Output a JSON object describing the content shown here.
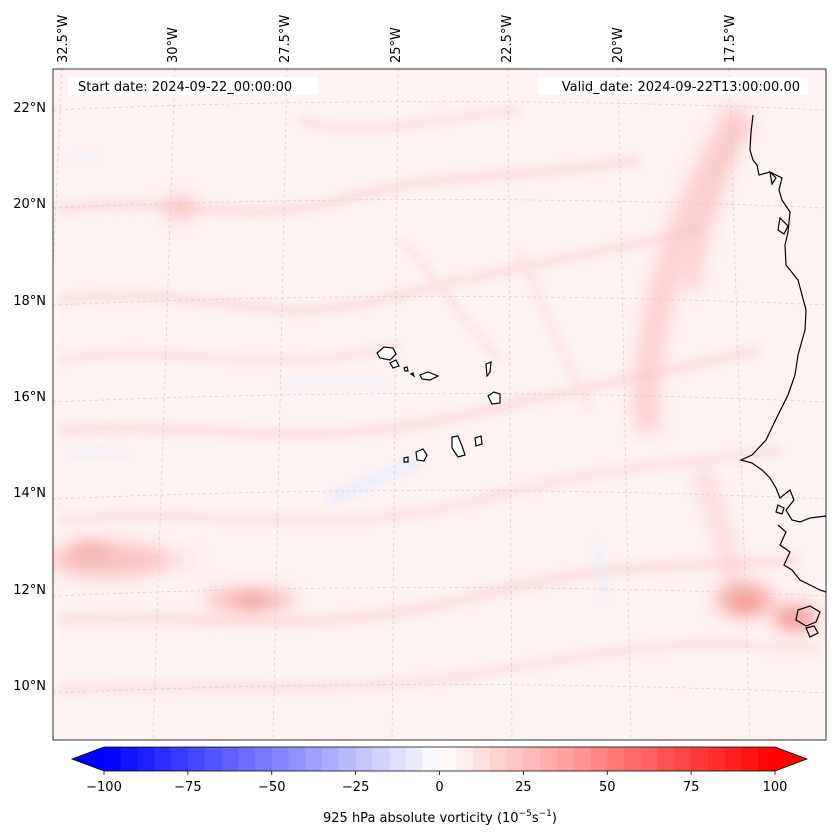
{
  "map": {
    "start_date_label": "Start date: 2024-09-22_00:00:00",
    "valid_date_label": "Valid_date: 2024-09-22T13:00:00.00",
    "longitude_labels": [
      "32.5°W",
      "30°W",
      "27.5°W",
      "25°W",
      "22.5°W",
      "20°W",
      "17.5°W"
    ],
    "latitude_labels": [
      "22°N",
      "20°N",
      "18°N",
      "16°N",
      "14°N",
      "12°N",
      "10°N"
    ],
    "field": "925 hPa absolute vorticity"
  },
  "colorbar": {
    "label_text": "925 hPa absolute vorticity",
    "label_units_base": "(10",
    "label_units_exp1": "−5",
    "label_units_mid": "s",
    "label_units_exp2": "−1",
    "label_units_close": ")",
    "ticks": [
      "−100",
      "−75",
      "−50",
      "−25",
      "0",
      "25",
      "50",
      "75",
      "100"
    ],
    "tick_values": [
      -100,
      -75,
      -50,
      -25,
      0,
      25,
      50,
      75,
      100
    ],
    "vmin": -100,
    "vmax": 100,
    "levels": 40,
    "cmap": "bwr",
    "colors": {
      "low": "#0000ff",
      "mid": "#ffffff",
      "high": "#ff0000"
    }
  }
}
